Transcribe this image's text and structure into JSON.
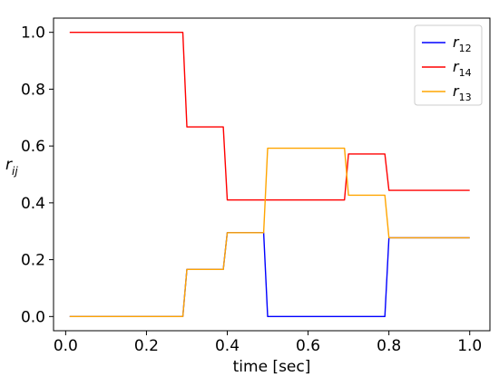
{
  "chart_data": {
    "type": "line",
    "title": "",
    "xlabel": "time [sec]",
    "ylabel_main": "r",
    "ylabel_sub": "ij",
    "xlim": [
      -0.03,
      1.05
    ],
    "ylim": [
      -0.05,
      1.05
    ],
    "xticks": [
      0.0,
      0.2,
      0.4,
      0.6,
      0.8,
      1.0
    ],
    "xtick_labels": [
      "0.0",
      "0.2",
      "0.4",
      "0.6",
      "0.8",
      "1.0"
    ],
    "yticks": [
      0.0,
      0.2,
      0.4,
      0.6,
      0.8,
      1.0
    ],
    "ytick_labels": [
      "0.0",
      "0.2",
      "0.4",
      "0.6",
      "0.8",
      "1.0"
    ],
    "grid": false,
    "legend_position": "top-right",
    "series": [
      {
        "name_main": "r",
        "name_sub": "12",
        "color": "#0000ff",
        "x": [
          0.01,
          0.29,
          0.3,
          0.39,
          0.4,
          0.49,
          0.5,
          0.79,
          0.8,
          1.0
        ],
        "y": [
          0.0,
          0.0,
          0.166,
          0.166,
          0.295,
          0.295,
          0.0,
          0.0,
          0.277,
          0.277
        ]
      },
      {
        "name_main": "r",
        "name_sub": "14",
        "color": "#ff0000",
        "x": [
          0.01,
          0.29,
          0.3,
          0.39,
          0.4,
          0.69,
          0.7,
          0.79,
          0.8,
          1.0
        ],
        "y": [
          1.0,
          1.0,
          0.667,
          0.667,
          0.41,
          0.41,
          0.572,
          0.572,
          0.444,
          0.444
        ]
      },
      {
        "name_main": "r",
        "name_sub": "13",
        "color": "#ffa500",
        "x": [
          0.01,
          0.29,
          0.3,
          0.39,
          0.4,
          0.49,
          0.5,
          0.69,
          0.7,
          0.79,
          0.8,
          1.0
        ],
        "y": [
          0.0,
          0.0,
          0.166,
          0.166,
          0.295,
          0.295,
          0.592,
          0.592,
          0.427,
          0.427,
          0.277,
          0.277
        ]
      }
    ]
  }
}
